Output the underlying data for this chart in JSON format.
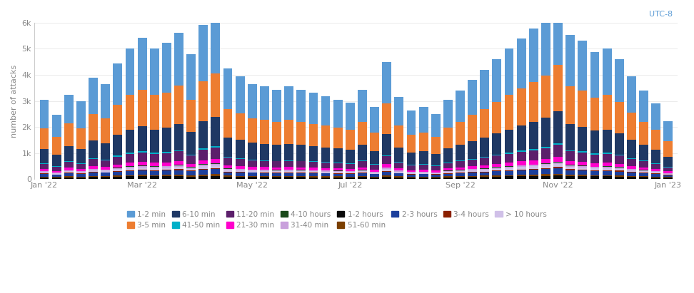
{
  "title_annotation": "UTC-8",
  "ylabel": "number of attacks",
  "ylim": [
    0,
    6000
  ],
  "yticks": [
    0,
    1000,
    2000,
    3000,
    4000,
    5000,
    6000
  ],
  "ytick_labels": [
    "0",
    "1k",
    "2k",
    "3k",
    "4k",
    "5k",
    "6k"
  ],
  "legend_row1": [
    "1-2 min",
    "3-5 min",
    "6-10 min",
    "41-50 min",
    "11-20 min",
    "21-30 min",
    "4-10 hours",
    "31-40 min"
  ],
  "legend_row2": [
    "1-2 hours",
    "51-60 min",
    "2-3 hours",
    "3-4 hours",
    "> 10 hours"
  ],
  "legend_colors_row1": [
    "#5B9BD5",
    "#ED7D31",
    "#1F3864",
    "#00B0C8",
    "#5C1F6B",
    "#FF00CC",
    "#1A4A1A",
    "#C9A0DC"
  ],
  "legend_colors_row2": [
    "#0A0A0A",
    "#7B3F00",
    "#1C3F9C",
    "#8B2000",
    "#D0C0E8"
  ],
  "stack_order_labels": [
    "1-2 hours",
    "51-60 min",
    "2-3 hours",
    "3-4 hours",
    "> 10 hours",
    "31-40 min",
    "4-10 hours",
    "21-30 min",
    "11-20 min",
    "41-50 min",
    "6-10 min",
    "3-5 min",
    "1-2 min"
  ],
  "stack_order_colors": [
    "#0A0A0A",
    "#7B3F00",
    "#1C3F9C",
    "#8B2000",
    "#D0C0E8",
    "#C9A0DC",
    "#1A4A1A",
    "#FF00CC",
    "#5C1F6B",
    "#00B0C8",
    "#1F3864",
    "#ED7D31",
    "#5B9BD5"
  ],
  "bar_data": [
    [
      60,
      30,
      100,
      20,
      50,
      30,
      10,
      80,
      200,
      20,
      550,
      800,
      1100
    ],
    [
      50,
      25,
      85,
      18,
      40,
      25,
      8,
      60,
      160,
      15,
      440,
      680,
      850
    ],
    [
      70,
      35,
      110,
      22,
      55,
      35,
      12,
      90,
      220,
      25,
      590,
      870,
      1100
    ],
    [
      60,
      30,
      100,
      20,
      50,
      30,
      10,
      80,
      200,
      20,
      550,
      800,
      1050
    ],
    [
      80,
      40,
      130,
      26,
      65,
      40,
      14,
      105,
      260,
      30,
      690,
      1020,
      1400
    ],
    [
      76,
      38,
      122,
      24,
      60,
      38,
      13,
      98,
      245,
      28,
      640,
      950,
      1300
    ],
    [
      90,
      45,
      145,
      29,
      72,
      45,
      16,
      120,
      300,
      35,
      790,
      1160,
      1600
    ],
    [
      100,
      50,
      160,
      32,
      80,
      50,
      18,
      135,
      340,
      40,
      900,
      1320,
      1800
    ],
    [
      106,
      53,
      170,
      34,
      84,
      53,
      19,
      145,
      360,
      42,
      950,
      1400,
      2000
    ],
    [
      100,
      50,
      160,
      32,
      80,
      50,
      18,
      135,
      340,
      40,
      900,
      1320,
      1800
    ],
    [
      103,
      51,
      165,
      33,
      82,
      51,
      19,
      140,
      350,
      41,
      925,
      1360,
      1900
    ],
    [
      110,
      55,
      175,
      35,
      88,
      55,
      20,
      150,
      375,
      44,
      1000,
      1470,
      2050
    ],
    [
      94,
      47,
      151,
      30,
      75,
      47,
      17,
      128,
      320,
      37,
      850,
      1250,
      1750
    ],
    [
      116,
      58,
      186,
      37,
      92,
      58,
      21,
      158,
      395,
      46,
      1050,
      1540,
      2150
    ],
    [
      124,
      62,
      199,
      40,
      100,
      62,
      23,
      170,
      428,
      50,
      1130,
      1660,
      2400
    ],
    [
      84,
      42,
      136,
      27,
      68,
      42,
      15,
      113,
      285,
      33,
      750,
      1100,
      1550
    ],
    [
      80,
      40,
      130,
      26,
      65,
      40,
      14,
      105,
      265,
      30,
      700,
      1030,
      1430
    ],
    [
      76,
      38,
      122,
      24,
      60,
      38,
      13,
      98,
      245,
      28,
      650,
      950,
      1300
    ],
    [
      74,
      37,
      118,
      23,
      58,
      37,
      13,
      95,
      238,
      27,
      630,
      920,
      1280
    ],
    [
      72,
      36,
      115,
      23,
      57,
      36,
      12,
      92,
      230,
      26,
      610,
      890,
      1220
    ],
    [
      74,
      37,
      118,
      23,
      58,
      37,
      13,
      95,
      238,
      27,
      630,
      920,
      1280
    ],
    [
      72,
      36,
      115,
      23,
      57,
      36,
      12,
      92,
      230,
      26,
      610,
      890,
      1220
    ],
    [
      70,
      35,
      112,
      22,
      55,
      35,
      12,
      89,
      222,
      25,
      585,
      860,
      1180
    ],
    [
      68,
      34,
      108,
      21,
      54,
      34,
      11,
      85,
      213,
      25,
      565,
      830,
      1140
    ],
    [
      65,
      33,
      104,
      21,
      52,
      33,
      11,
      82,
      205,
      24,
      540,
      790,
      1080
    ],
    [
      62,
      31,
      100,
      20,
      50,
      31,
      10,
      78,
      196,
      23,
      520,
      760,
      1040
    ],
    [
      72,
      36,
      115,
      23,
      57,
      36,
      12,
      92,
      231,
      27,
      610,
      890,
      1220
    ],
    [
      59,
      29,
      94,
      19,
      47,
      29,
      10,
      75,
      187,
      22,
      495,
      720,
      980
    ],
    [
      92,
      46,
      148,
      29,
      73,
      46,
      16,
      121,
      303,
      35,
      805,
      1180,
      1600
    ],
    [
      68,
      34,
      108,
      22,
      54,
      34,
      11,
      85,
      213,
      25,
      565,
      830,
      1100
    ],
    [
      55,
      28,
      90,
      18,
      44,
      28,
      9,
      71,
      178,
      21,
      470,
      690,
      930
    ],
    [
      59,
      29,
      94,
      19,
      47,
      29,
      10,
      75,
      187,
      22,
      495,
      720,
      980
    ],
    [
      53,
      27,
      86,
      17,
      42,
      27,
      9,
      68,
      169,
      20,
      445,
      650,
      880
    ],
    [
      65,
      33,
      104,
      21,
      52,
      33,
      11,
      82,
      205,
      24,
      540,
      790,
      1070
    ],
    [
      72,
      36,
      115,
      23,
      57,
      36,
      12,
      92,
      231,
      27,
      610,
      890,
      1200
    ],
    [
      79,
      40,
      127,
      25,
      63,
      40,
      14,
      103,
      258,
      30,
      680,
      1000,
      1360
    ],
    [
      84,
      42,
      136,
      27,
      68,
      42,
      15,
      113,
      285,
      33,
      750,
      1100,
      1500
    ],
    [
      94,
      47,
      151,
      30,
      75,
      47,
      17,
      125,
      313,
      36,
      825,
      1210,
      1640
    ],
    [
      100,
      50,
      160,
      32,
      80,
      50,
      18,
      135,
      340,
      40,
      900,
      1320,
      1780
    ],
    [
      108,
      54,
      173,
      34,
      86,
      54,
      19,
      147,
      366,
      43,
      970,
      1420,
      1930
    ],
    [
      114,
      57,
      183,
      37,
      92,
      57,
      21,
      157,
      392,
      46,
      1040,
      1520,
      2070
    ],
    [
      122,
      61,
      196,
      39,
      98,
      61,
      22,
      168,
      419,
      49,
      1110,
      1630,
      2220
    ],
    [
      135,
      68,
      217,
      43,
      108,
      68,
      25,
      185,
      462,
      54,
      1225,
      1800,
      2460
    ],
    [
      110,
      55,
      177,
      35,
      88,
      55,
      20,
      150,
      375,
      44,
      990,
      1450,
      1980
    ],
    [
      106,
      53,
      170,
      34,
      84,
      53,
      19,
      143,
      358,
      42,
      950,
      1390,
      1900
    ],
    [
      98,
      49,
      157,
      31,
      78,
      49,
      18,
      132,
      330,
      38,
      875,
      1280,
      1740
    ],
    [
      100,
      50,
      160,
      32,
      80,
      50,
      18,
      135,
      340,
      40,
      900,
      1320,
      1790
    ],
    [
      93,
      46,
      149,
      30,
      75,
      46,
      17,
      125,
      313,
      36,
      825,
      1210,
      1640
    ],
    [
      81,
      40,
      130,
      26,
      65,
      40,
      14,
      107,
      268,
      31,
      705,
      1040,
      1410
    ],
    [
      72,
      36,
      115,
      23,
      57,
      36,
      12,
      92,
      231,
      27,
      610,
      890,
      1200
    ],
    [
      62,
      31,
      100,
      20,
      50,
      31,
      10,
      78,
      196,
      23,
      520,
      760,
      1020
    ],
    [
      48,
      24,
      77,
      15,
      38,
      24,
      8,
      60,
      152,
      18,
      400,
      585,
      780
    ]
  ],
  "xtick_positions": [
    0,
    8,
    17,
    25,
    34,
    42,
    51
  ],
  "xtick_labels": [
    "Jan '22",
    "Mar '22",
    "May '22",
    "Jul '22",
    "Sep '22",
    "Nov '22",
    "Jan '23"
  ],
  "background_color": "#ffffff",
  "bar_width": 0.75
}
